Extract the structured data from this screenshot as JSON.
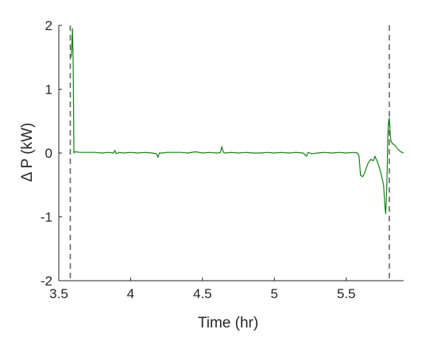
{
  "chart_data": {
    "type": "line",
    "title": "",
    "xlabel": "Time (hr)",
    "ylabel": "Δ P (kW)",
    "xlim": [
      3.5,
      5.9
    ],
    "ylim": [
      -2,
      2
    ],
    "xticks": [
      3.5,
      4,
      4.5,
      5,
      5.5
    ],
    "xtick_labels": [
      "3.5",
      "4",
      "4.5",
      "5",
      "5.5"
    ],
    "yticks": [
      -2,
      -1,
      0,
      1,
      2
    ],
    "ytick_labels": [
      "-2",
      "-1",
      "0",
      "1",
      "2"
    ],
    "grid": false,
    "box": false,
    "vertical_lines": [
      {
        "x": 3.58,
        "style": "dashed",
        "color": "#666666"
      },
      {
        "x": 5.8,
        "style": "dashed",
        "color": "#666666"
      }
    ],
    "series": [
      {
        "color": "#138013",
        "x": [
          3.585,
          3.59,
          3.595,
          3.6,
          3.605,
          3.61,
          3.65,
          3.7,
          3.75,
          3.8,
          3.85,
          3.88,
          3.89,
          3.9,
          3.92,
          3.95,
          4.0,
          4.05,
          4.1,
          4.15,
          4.18,
          4.19,
          4.2,
          4.22,
          4.25,
          4.3,
          4.35,
          4.4,
          4.45,
          4.5,
          4.55,
          4.6,
          4.625,
          4.635,
          4.645,
          4.66,
          4.7,
          4.75,
          4.8,
          4.85,
          4.9,
          4.95,
          5.0,
          5.05,
          5.1,
          5.15,
          5.2,
          5.225,
          5.235,
          5.245,
          5.26,
          5.3,
          5.35,
          5.4,
          5.45,
          5.5,
          5.55,
          5.58,
          5.59,
          5.6,
          5.615,
          5.63,
          5.65,
          5.67,
          5.69,
          5.7,
          5.72,
          5.74,
          5.76,
          5.77,
          5.775,
          5.78,
          5.785,
          5.79,
          5.795,
          5.8,
          5.805,
          5.81,
          5.82,
          5.84,
          5.86,
          5.88,
          5.9
        ],
        "y": [
          1.5,
          1.65,
          1.95,
          1.4,
          0.0,
          0.02,
          0.01,
          0.01,
          0.01,
          0.0,
          0.01,
          0.0,
          0.04,
          -0.01,
          0.01,
          0.0,
          0.01,
          0.0,
          0.01,
          0.0,
          -0.01,
          -0.07,
          0.0,
          0.0,
          0.01,
          0.01,
          0.01,
          0.0,
          0.02,
          0.0,
          0.01,
          0.0,
          0.01,
          0.1,
          0.01,
          0.0,
          0.01,
          0.0,
          0.01,
          0.0,
          0.0,
          0.01,
          0.0,
          0.01,
          0.0,
          0.01,
          0.0,
          -0.05,
          0.01,
          0.0,
          -0.01,
          0.0,
          0.01,
          0.0,
          0.01,
          0.0,
          0.01,
          0.0,
          -0.05,
          -0.35,
          -0.37,
          -0.3,
          -0.17,
          -0.1,
          -0.12,
          -0.05,
          -0.15,
          -0.3,
          -0.5,
          -0.85,
          -0.95,
          -0.7,
          -0.3,
          0.3,
          0.5,
          0.55,
          0.35,
          0.2,
          0.15,
          0.12,
          0.06,
          0.02,
          0.0
        ]
      }
    ]
  }
}
